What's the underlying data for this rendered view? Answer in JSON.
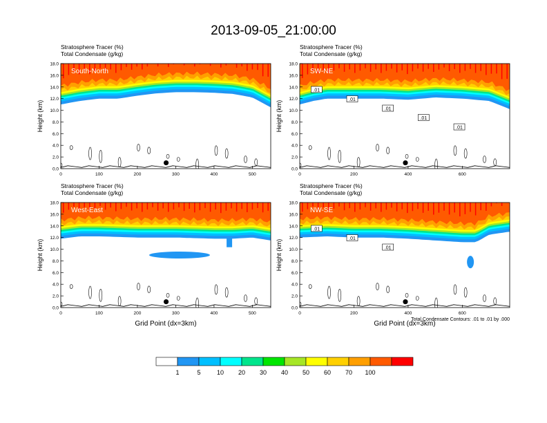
{
  "figure": {
    "title": "2013-09-05_21:00:00",
    "contour_note": "Total Condensate Contours: .01 to .01 by .000"
  },
  "colorbar": {
    "levels": [
      "1",
      "5",
      "10",
      "20",
      "30",
      "40",
      "50",
      "60",
      "70",
      "100"
    ],
    "colors": [
      "#ffffff",
      "#2196f3",
      "#00bfff",
      "#00ffff",
      "#00e58c",
      "#00e600",
      "#a6e626",
      "#ffff00",
      "#ffd000",
      "#ff9f00",
      "#ff5a00",
      "#ff0000"
    ]
  },
  "chart_data": [
    {
      "type": "heatmap",
      "panel_label": "South-North",
      "subtitle_line1": "Stratosphere Tracer   (%)",
      "subtitle_line2": "Total Condensate   (g/kg)",
      "ylabel": "Height (km)",
      "xlabel": "",
      "xlim": [
        0,
        548
      ],
      "ylim": [
        0,
        18
      ],
      "xticks": [
        "0",
        "100",
        "200",
        "300",
        "400",
        "500"
      ],
      "yticks": [
        "0.0",
        "2.0",
        "4.0",
        "6.0",
        "8.0",
        "10.0",
        "12.0",
        "14.0",
        "16.0",
        "18.0"
      ],
      "marker_x": 275,
      "marker_y": 1.0,
      "tropopause_km": [
        [
          0,
          11.0
        ],
        [
          50,
          11.6
        ],
        [
          100,
          12.0
        ],
        [
          150,
          12.0
        ],
        [
          200,
          12.5
        ],
        [
          250,
          12.9
        ],
        [
          300,
          13.1
        ],
        [
          350,
          13.1
        ],
        [
          400,
          13.0
        ],
        [
          450,
          12.8
        ],
        [
          500,
          12.2
        ],
        [
          548,
          10.5
        ]
      ],
      "contour_labels": []
    },
    {
      "type": "heatmap",
      "panel_label": "SW-NE",
      "subtitle_line1": "Stratosphere Tracer   (%)",
      "subtitle_line2": "Total Condensate   (g/kg)",
      "ylabel": "Height (km)",
      "xlabel": "",
      "xlim": [
        0,
        775
      ],
      "ylim": [
        0,
        18
      ],
      "xticks": [
        "0",
        "200",
        "400",
        "600"
      ],
      "yticks": [
        "0.0",
        "2.0",
        "4.0",
        "6.0",
        "8.0",
        "10.0",
        "12.0",
        "14.0",
        "16.0",
        "18.0"
      ],
      "marker_x": 390,
      "marker_y": 1.0,
      "tropopause_km": [
        [
          0,
          11.0
        ],
        [
          50,
          11.6
        ],
        [
          100,
          12.0
        ],
        [
          200,
          12.0
        ],
        [
          300,
          12.0
        ],
        [
          400,
          11.8
        ],
        [
          500,
          12.2
        ],
        [
          600,
          12.0
        ],
        [
          700,
          11.6
        ],
        [
          775,
          10.2
        ]
      ],
      "contour_labels": [
        ".01",
        ".01",
        ".01",
        ".01",
        ".01"
      ]
    },
    {
      "type": "heatmap",
      "panel_label": "West-East",
      "subtitle_line1": "Stratosphere Tracer   (%)",
      "subtitle_line2": "Total Condensate   (g/kg)",
      "ylabel": "Height (km)",
      "xlabel": "Grid Point (dx=3km)",
      "xlim": [
        0,
        548
      ],
      "ylim": [
        0,
        18
      ],
      "xticks": [
        "0",
        "100",
        "200",
        "300",
        "400",
        "500"
      ],
      "yticks": [
        "0.0",
        "2.0",
        "4.0",
        "6.0",
        "8.0",
        "10.0",
        "12.0",
        "14.0",
        "16.0",
        "18.0"
      ],
      "marker_x": 275,
      "marker_y": 1.0,
      "tropopause_km": [
        [
          0,
          11.8
        ],
        [
          50,
          12.2
        ],
        [
          100,
          12.2
        ],
        [
          200,
          12.0
        ],
        [
          300,
          12.0
        ],
        [
          400,
          11.8
        ],
        [
          450,
          11.8
        ],
        [
          500,
          12.0
        ],
        [
          548,
          11.5
        ]
      ],
      "contour_labels": []
    },
    {
      "type": "heatmap",
      "panel_label": "NW-SE",
      "subtitle_line1": "Stratosphere Tracer   (%)",
      "subtitle_line2": "Total Condensate   (g/kg)",
      "ylabel": "Height (km)",
      "xlabel": "Grid Point (dx=3km)",
      "xlim": [
        0,
        775
      ],
      "ylim": [
        0,
        18
      ],
      "xticks": [
        "0",
        "200",
        "400",
        "600"
      ],
      "yticks": [
        "0.0",
        "2.0",
        "4.0",
        "6.0",
        "8.0",
        "10.0",
        "12.0",
        "14.0",
        "16.0",
        "18.0"
      ],
      "marker_x": 390,
      "marker_y": 1.0,
      "tropopause_km": [
        [
          0,
          12.0
        ],
        [
          100,
          12.2
        ],
        [
          200,
          12.0
        ],
        [
          300,
          12.0
        ],
        [
          400,
          11.8
        ],
        [
          500,
          11.5
        ],
        [
          600,
          11.2
        ],
        [
          650,
          11.2
        ],
        [
          700,
          12.5
        ],
        [
          775,
          13.0
        ]
      ],
      "contour_labels": [
        ".01",
        ".01",
        ".01"
      ]
    }
  ]
}
